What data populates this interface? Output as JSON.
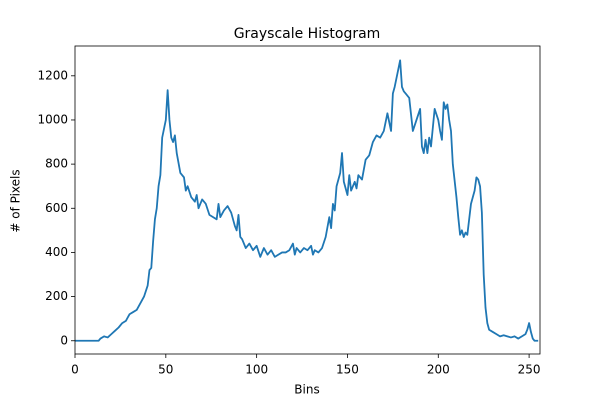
{
  "chart_data": {
    "type": "line",
    "title": "Grayscale Histogram",
    "xlabel": "Bins",
    "ylabel": "# of Pixels",
    "series": [
      {
        "color": "#1f77b4",
        "x": [
          0,
          13,
          14,
          16,
          18,
          20,
          22,
          24,
          26,
          28,
          30,
          32,
          34,
          36,
          38,
          40,
          41,
          42,
          43,
          44,
          45,
          46,
          47,
          48,
          50,
          51,
          52,
          53,
          54,
          55,
          56,
          58,
          60,
          61,
          62,
          64,
          66,
          67,
          68,
          70,
          72,
          74,
          76,
          78,
          79,
          80,
          82,
          84,
          86,
          88,
          89,
          90,
          91,
          92,
          94,
          96,
          98,
          100,
          102,
          104,
          106,
          108,
          110,
          112,
          114,
          116,
          118,
          120,
          121,
          122,
          124,
          126,
          128,
          130,
          131,
          132,
          134,
          136,
          138,
          140,
          141,
          142,
          143,
          144,
          146,
          147,
          148,
          150,
          151,
          152,
          154,
          155,
          156,
          158,
          160,
          162,
          164,
          166,
          168,
          170,
          172,
          174,
          175,
          176,
          178,
          179,
          180,
          181,
          182,
          184,
          186,
          188,
          190,
          191,
          192,
          193,
          194,
          195,
          196,
          198,
          200,
          201,
          202,
          203,
          204,
          205,
          206,
          207,
          208,
          210,
          211,
          212,
          213,
          214,
          215,
          216,
          217,
          218,
          220,
          221,
          222,
          223,
          224,
          225,
          226,
          227,
          228,
          230,
          232,
          234,
          236,
          238,
          240,
          242,
          244,
          246,
          248,
          249,
          250,
          251,
          252,
          253,
          255
        ],
        "values": [
          0,
          0,
          10,
          20,
          15,
          30,
          45,
          60,
          80,
          90,
          120,
          130,
          140,
          170,
          200,
          250,
          320,
          330,
          450,
          550,
          600,
          700,
          750,
          920,
          1000,
          1135,
          1000,
          920,
          900,
          930,
          850,
          760,
          740,
          680,
          700,
          650,
          630,
          660,
          600,
          640,
          620,
          570,
          560,
          550,
          620,
          560,
          590,
          610,
          580,
          520,
          500,
          570,
          470,
          460,
          420,
          440,
          410,
          430,
          380,
          420,
          390,
          410,
          380,
          390,
          400,
          400,
          410,
          440,
          390,
          420,
          400,
          420,
          410,
          430,
          390,
          410,
          400,
          420,
          470,
          560,
          510,
          620,
          590,
          700,
          760,
          850,
          720,
          660,
          750,
          680,
          720,
          690,
          750,
          730,
          820,
          840,
          900,
          930,
          920,
          950,
          1030,
          950,
          1120,
          1150,
          1230,
          1270,
          1150,
          1130,
          1120,
          1100,
          950,
          1000,
          1050,
          880,
          850,
          910,
          850,
          920,
          880,
          1050,
          1000,
          950,
          910,
          1080,
          1050,
          1070,
          1000,
          950,
          800,
          650,
          560,
          480,
          500,
          470,
          490,
          480,
          550,
          620,
          680,
          740,
          730,
          700,
          580,
          300,
          150,
          80,
          50,
          40,
          30,
          20,
          25,
          20,
          15,
          20,
          10,
          20,
          30,
          50,
          80,
          40,
          10,
          0,
          0
        ]
      }
    ],
    "xlim": [
      0,
      256
    ],
    "xticks": [
      0,
      50,
      100,
      150,
      200,
      250
    ],
    "ylim": [
      -60,
      1335
    ],
    "yticks": [
      0,
      200,
      400,
      600,
      800,
      1000,
      1200
    ]
  }
}
